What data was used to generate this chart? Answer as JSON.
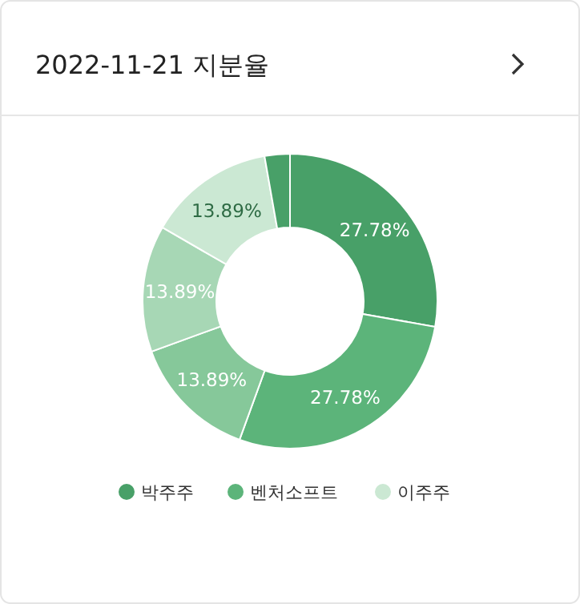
{
  "chart_data": {
    "type": "donut",
    "title": "2022-11-21 지분율",
    "categories": [
      "박주주",
      "벤처소프트",
      null,
      null,
      "이주주",
      null
    ],
    "values": [
      27.78,
      27.78,
      13.89,
      13.89,
      13.89,
      2.77
    ],
    "value_labels": [
      "27.78%",
      "27.78%",
      "13.89%",
      "13.89%",
      "13.89%",
      null
    ],
    "colors": [
      "#48a068",
      "#5cb47a",
      "#86c89a",
      "#a7d7b5",
      "#cbe8d3",
      "#48a068"
    ],
    "legend": "bottom"
  }
}
